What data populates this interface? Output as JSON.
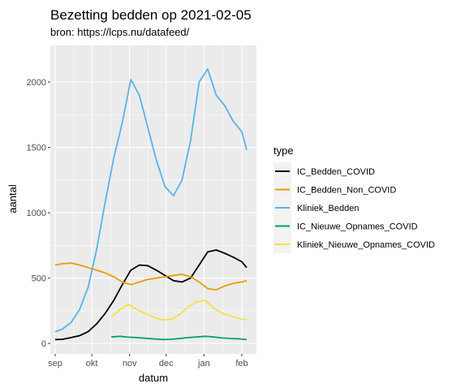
{
  "chart_data": {
    "type": "line",
    "title": "Bezetting bedden op 2021-02-05",
    "subtitle": "bron: https://lcps.nu/datafeed/",
    "xlabel": "datum",
    "ylabel": "aantal",
    "x_ticks": [
      "sep",
      "okt",
      "nov",
      "dec",
      "jan",
      "feb"
    ],
    "x_tick_dates": [
      "2020-09-01",
      "2020-10-01",
      "2020-11-01",
      "2020-12-01",
      "2021-01-01",
      "2021-02-01"
    ],
    "xlim": [
      "2020-08-28",
      "2021-02-13"
    ],
    "y_ticks": [
      0,
      500,
      1000,
      1500,
      2000
    ],
    "ylim": [
      -80,
      2280
    ],
    "grid": true,
    "legend_position": "right",
    "legend_title": "type",
    "series": [
      {
        "name": "IC_Bedden_COVID",
        "color": "#000000",
        "points": [
          [
            "2020-09-01",
            30
          ],
          [
            "2020-09-07",
            32
          ],
          [
            "2020-09-14",
            45
          ],
          [
            "2020-09-21",
            60
          ],
          [
            "2020-09-28",
            90
          ],
          [
            "2020-10-05",
            150
          ],
          [
            "2020-10-12",
            230
          ],
          [
            "2020-10-19",
            330
          ],
          [
            "2020-10-26",
            450
          ],
          [
            "2020-11-02",
            560
          ],
          [
            "2020-11-09",
            600
          ],
          [
            "2020-11-16",
            595
          ],
          [
            "2020-11-23",
            560
          ],
          [
            "2020-11-30",
            520
          ],
          [
            "2020-12-07",
            480
          ],
          [
            "2020-12-14",
            470
          ],
          [
            "2020-12-21",
            500
          ],
          [
            "2020-12-28",
            600
          ],
          [
            "2021-01-04",
            700
          ],
          [
            "2021-01-11",
            715
          ],
          [
            "2021-01-18",
            690
          ],
          [
            "2021-01-25",
            660
          ],
          [
            "2021-02-01",
            625
          ],
          [
            "2021-02-05",
            580
          ]
        ]
      },
      {
        "name": "IC_Bedden_Non_COVID",
        "color": "#E69F00",
        "points": [
          [
            "2020-09-01",
            600
          ],
          [
            "2020-09-07",
            610
          ],
          [
            "2020-09-14",
            615
          ],
          [
            "2020-09-21",
            600
          ],
          [
            "2020-09-28",
            580
          ],
          [
            "2020-10-05",
            560
          ],
          [
            "2020-10-12",
            540
          ],
          [
            "2020-10-19",
            510
          ],
          [
            "2020-10-26",
            470
          ],
          [
            "2020-11-02",
            450
          ],
          [
            "2020-11-09",
            470
          ],
          [
            "2020-11-16",
            490
          ],
          [
            "2020-11-23",
            500
          ],
          [
            "2020-11-30",
            510
          ],
          [
            "2020-12-07",
            520
          ],
          [
            "2020-12-14",
            530
          ],
          [
            "2020-12-21",
            510
          ],
          [
            "2020-12-28",
            470
          ],
          [
            "2021-01-04",
            420
          ],
          [
            "2021-01-11",
            410
          ],
          [
            "2021-01-18",
            440
          ],
          [
            "2021-01-25",
            460
          ],
          [
            "2021-02-01",
            470
          ],
          [
            "2021-02-05",
            480
          ]
        ]
      },
      {
        "name": "Kliniek_Bedden",
        "color": "#56B4E9",
        "points": [
          [
            "2020-09-01",
            90
          ],
          [
            "2020-09-07",
            110
          ],
          [
            "2020-09-14",
            160
          ],
          [
            "2020-09-21",
            260
          ],
          [
            "2020-09-28",
            430
          ],
          [
            "2020-10-05",
            720
          ],
          [
            "2020-10-12",
            1080
          ],
          [
            "2020-10-19",
            1420
          ],
          [
            "2020-10-26",
            1690
          ],
          [
            "2020-11-02",
            2020
          ],
          [
            "2020-11-09",
            1900
          ],
          [
            "2020-11-16",
            1650
          ],
          [
            "2020-11-23",
            1400
          ],
          [
            "2020-11-30",
            1200
          ],
          [
            "2020-12-07",
            1130
          ],
          [
            "2020-12-14",
            1250
          ],
          [
            "2020-12-21",
            1550
          ],
          [
            "2020-12-28",
            2000
          ],
          [
            "2021-01-04",
            2100
          ],
          [
            "2021-01-11",
            1900
          ],
          [
            "2021-01-18",
            1820
          ],
          [
            "2021-01-25",
            1700
          ],
          [
            "2021-02-01",
            1620
          ],
          [
            "2021-02-05",
            1480
          ]
        ]
      },
      {
        "name": "IC_Nieuwe_Opnames_COVID",
        "color": "#009E73",
        "points": [
          [
            "2020-10-17",
            50
          ],
          [
            "2020-10-24",
            55
          ],
          [
            "2020-10-31",
            48
          ],
          [
            "2020-11-07",
            45
          ],
          [
            "2020-11-14",
            40
          ],
          [
            "2020-11-21",
            35
          ],
          [
            "2020-11-28",
            30
          ],
          [
            "2020-12-05",
            32
          ],
          [
            "2020-12-12",
            38
          ],
          [
            "2020-12-19",
            45
          ],
          [
            "2020-12-26",
            50
          ],
          [
            "2021-01-02",
            55
          ],
          [
            "2021-01-09",
            50
          ],
          [
            "2021-01-16",
            42
          ],
          [
            "2021-01-23",
            38
          ],
          [
            "2021-01-30",
            35
          ],
          [
            "2021-02-05",
            30
          ]
        ]
      },
      {
        "name": "Kliniek_Nieuwe_Opnames_COVID",
        "color": "#F0E442",
        "points": [
          [
            "2020-10-17",
            200
          ],
          [
            "2020-10-24",
            260
          ],
          [
            "2020-10-31",
            300
          ],
          [
            "2020-11-07",
            260
          ],
          [
            "2020-11-14",
            230
          ],
          [
            "2020-11-21",
            200
          ],
          [
            "2020-11-28",
            180
          ],
          [
            "2020-12-05",
            185
          ],
          [
            "2020-12-12",
            220
          ],
          [
            "2020-12-19",
            280
          ],
          [
            "2020-12-26",
            320
          ],
          [
            "2021-01-02",
            330
          ],
          [
            "2021-01-09",
            270
          ],
          [
            "2021-01-16",
            230
          ],
          [
            "2021-01-23",
            210
          ],
          [
            "2021-01-30",
            190
          ],
          [
            "2021-02-05",
            180
          ]
        ]
      }
    ]
  }
}
